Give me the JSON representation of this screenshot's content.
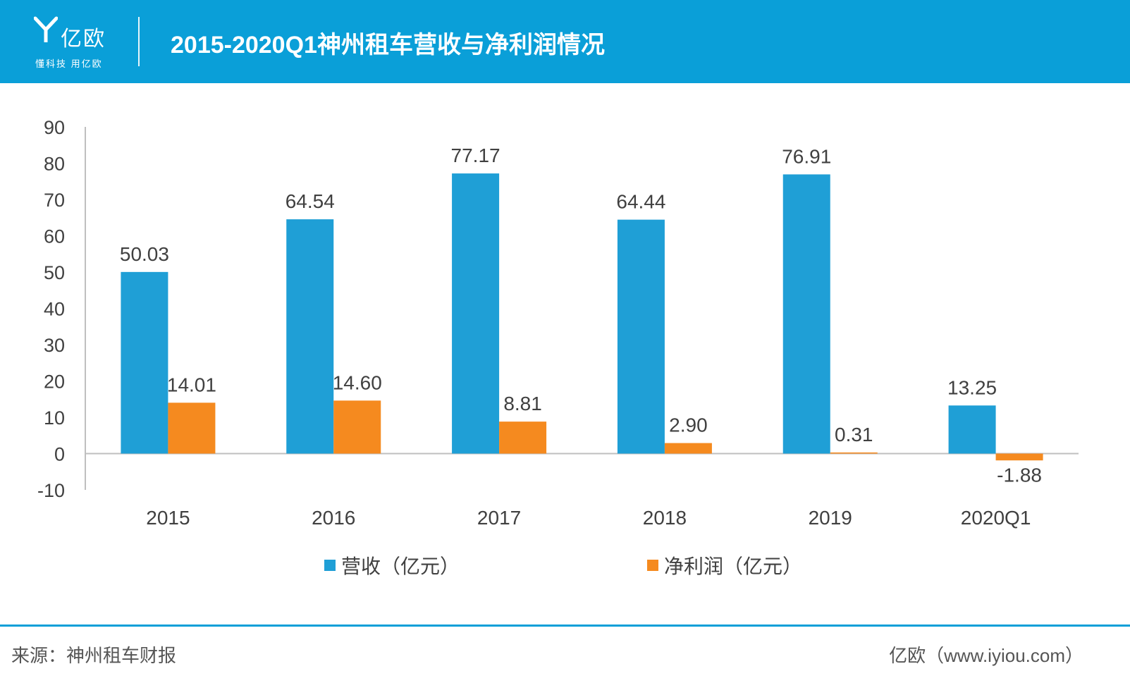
{
  "header": {
    "logo_name": "亿欧",
    "logo_slogan": "懂科技 用亿欧",
    "title": "2015-2020Q1神州租车营收与净利润情况"
  },
  "colors": {
    "header_bg": "#0a9fd8",
    "revenue": "#1f9fd6",
    "profit": "#f58a1f"
  },
  "chart_data": {
    "type": "bar",
    "title": "2015-2020Q1神州租车营收与净利润情况",
    "categories": [
      "2015",
      "2016",
      "2017",
      "2018",
      "2019",
      "2020Q1"
    ],
    "series": [
      {
        "name": "营收（亿元）",
        "values": [
          50.03,
          64.54,
          77.17,
          64.44,
          76.91,
          13.25
        ]
      },
      {
        "name": "净利润（亿元）",
        "values": [
          14.01,
          14.6,
          8.81,
          2.9,
          0.31,
          -1.88
        ]
      }
    ],
    "value_labels": [
      [
        "50.03",
        "64.54",
        "77.17",
        "64.44",
        "76.91",
        "13.25"
      ],
      [
        "14.01",
        "14.60",
        "8.81",
        "2.90",
        "0.31",
        "-1.88"
      ]
    ],
    "yticks": [
      "90",
      "80",
      "70",
      "60",
      "50",
      "40",
      "30",
      "20",
      "10",
      "0",
      "-10"
    ],
    "ylim": [
      -10,
      90
    ],
    "xlabel": "",
    "ylabel": "",
    "grid": false,
    "legend_position": "bottom"
  },
  "footer": {
    "source": "来源：神州租车财报",
    "brand": "亿欧（www.iyiou.com）"
  }
}
